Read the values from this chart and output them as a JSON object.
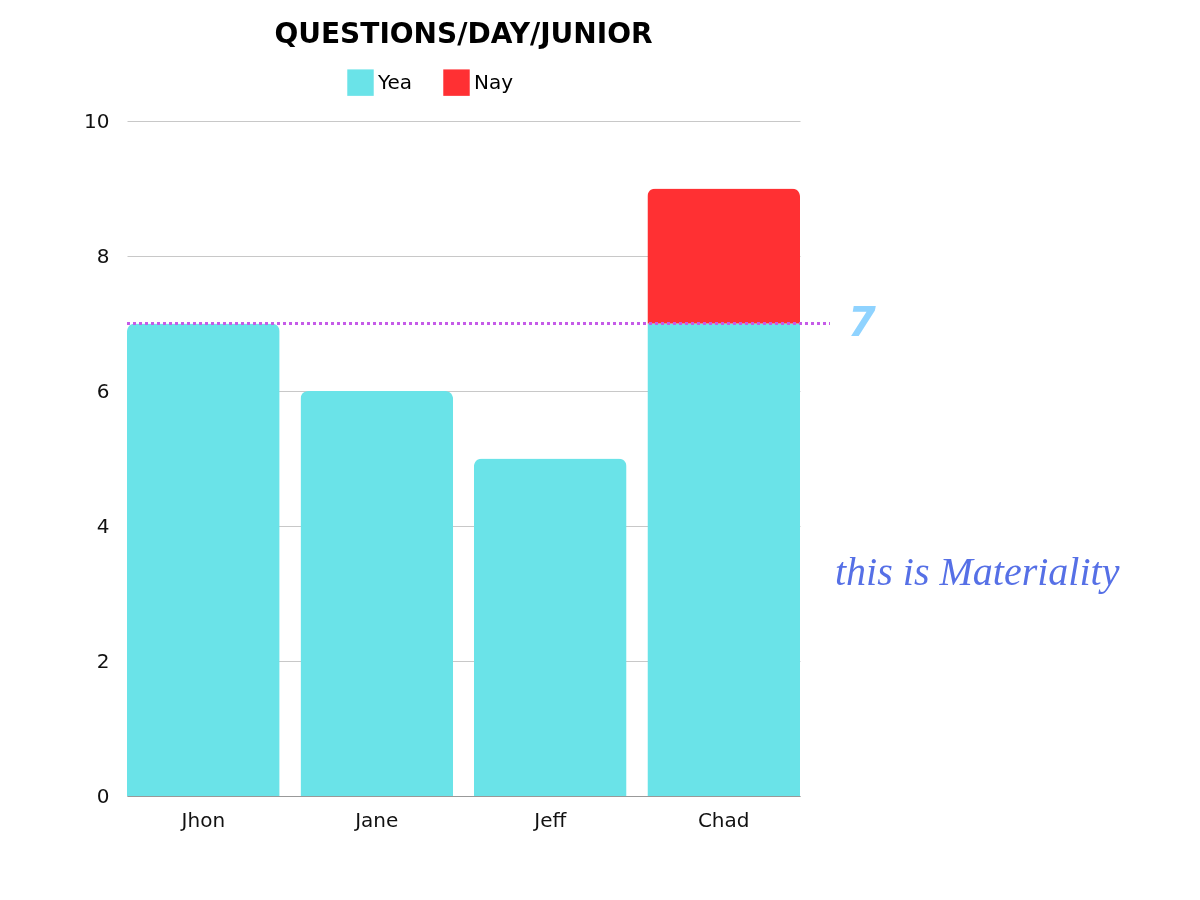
{
  "chart_data": {
    "type": "bar",
    "title": "QUESTIONS/DAY/JUNIOR",
    "stacked": true,
    "categories": [
      "Jhon",
      "Jane",
      "Jeff",
      "Chad"
    ],
    "series": [
      {
        "name": "Yea",
        "color": "#6ae3e8",
        "values": [
          7,
          6,
          5,
          7
        ]
      },
      {
        "name": "Nay",
        "color": "#ff3033",
        "values": [
          0,
          0,
          0,
          2
        ]
      }
    ],
    "ylim": [
      0,
      10
    ],
    "yticks": [
      0,
      2,
      4,
      6,
      8,
      10
    ],
    "grid": "y",
    "legend": "top",
    "ref_lines": [
      {
        "axis": "y",
        "value": 7,
        "label": "7",
        "color": "#c55be8",
        "line_style": "dotted"
      }
    ],
    "annotations": [
      "this is Materiality"
    ]
  }
}
